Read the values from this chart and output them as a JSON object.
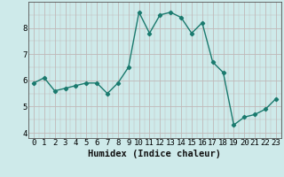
{
  "x": [
    0,
    1,
    2,
    3,
    4,
    5,
    6,
    7,
    8,
    9,
    10,
    11,
    12,
    13,
    14,
    15,
    16,
    17,
    18,
    19,
    20,
    21,
    22,
    23
  ],
  "y": [
    5.9,
    6.1,
    5.6,
    5.7,
    5.8,
    5.9,
    5.9,
    5.5,
    5.9,
    6.5,
    8.6,
    7.8,
    8.5,
    8.6,
    8.4,
    7.8,
    8.2,
    6.7,
    6.3,
    4.3,
    4.6,
    4.7,
    4.9,
    5.3
  ],
  "line_color": "#1a7a6e",
  "marker": "D",
  "marker_size": 2.2,
  "bg_color": "#ceeaea",
  "grid_major_color": "#c0b8b8",
  "xlabel": "Humidex (Indice chaleur)",
  "xlim": [
    -0.5,
    23.5
  ],
  "ylim": [
    3.8,
    9.0
  ],
  "yticks": [
    4,
    5,
    6,
    7,
    8
  ],
  "xticks": [
    0,
    1,
    2,
    3,
    4,
    5,
    6,
    7,
    8,
    9,
    10,
    11,
    12,
    13,
    14,
    15,
    16,
    17,
    18,
    19,
    20,
    21,
    22,
    23
  ],
  "tick_fontsize": 6.5,
  "label_fontsize": 7.5
}
